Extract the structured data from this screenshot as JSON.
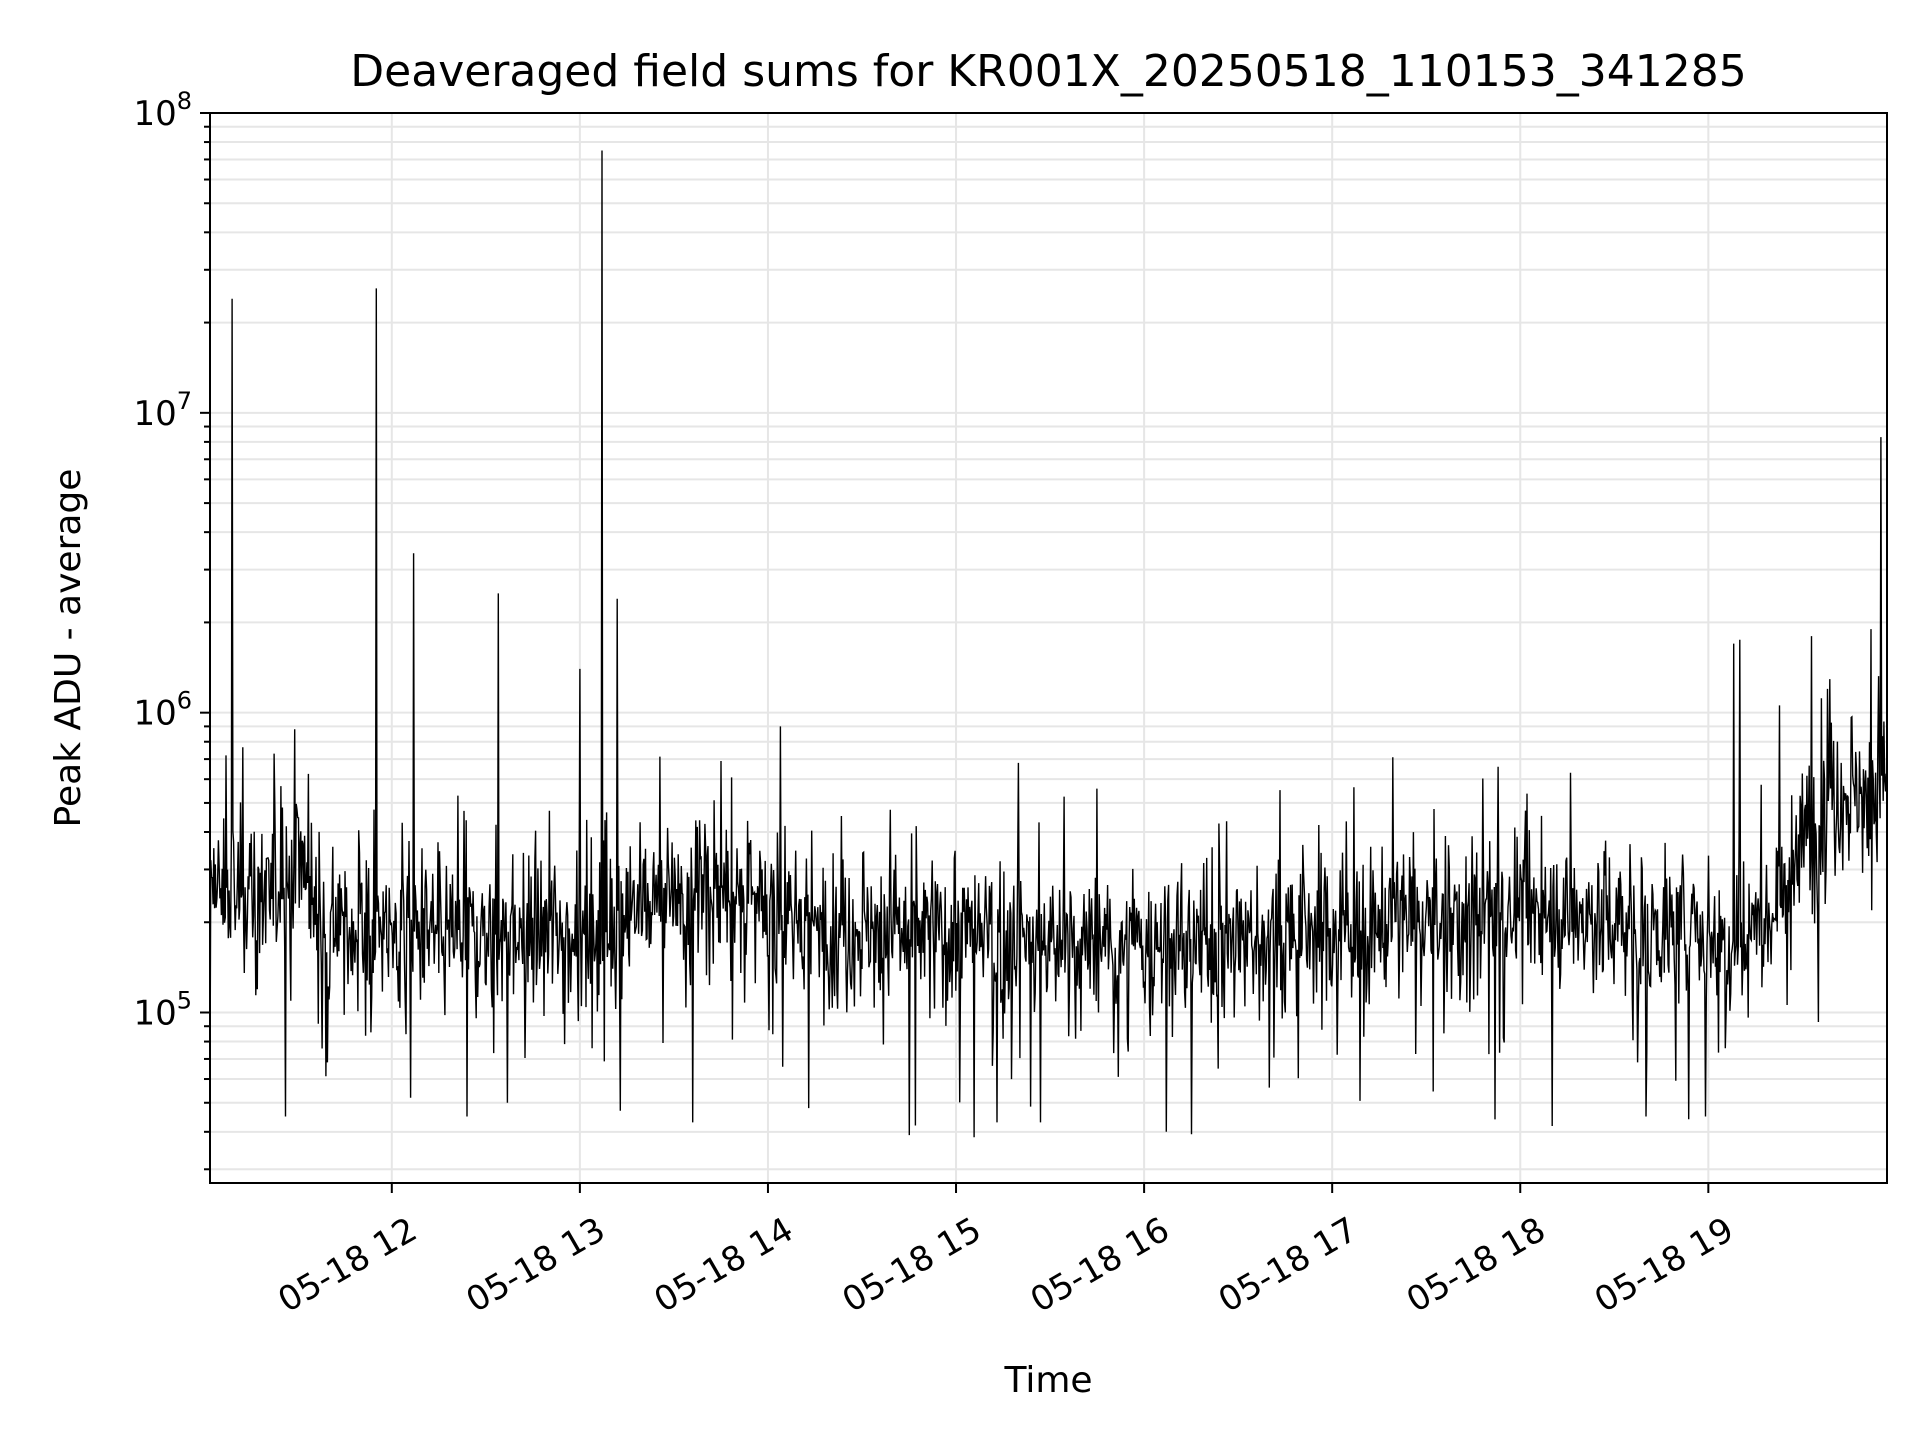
{
  "chart_data": {
    "type": "line",
    "title": "Deaveraged field sums for KR001X_20250518_110153_341285",
    "xlabel": "Time",
    "ylabel": "Peak ADU - average",
    "yscale": "log",
    "ylim": [
      27000,
      100000000
    ],
    "xlim": [
      "2025-05-18 11:02",
      "2025-05-18 19:57"
    ],
    "grid": true,
    "line_color": "#000000",
    "grid_color": "#e6e6e6",
    "x_ticks": [
      {
        "label": "05-18 12",
        "t": "2025-05-18 12:00"
      },
      {
        "label": "05-18 13",
        "t": "2025-05-18 13:00"
      },
      {
        "label": "05-18 14",
        "t": "2025-05-18 14:00"
      },
      {
        "label": "05-18 15",
        "t": "2025-05-18 15:00"
      },
      {
        "label": "05-18 16",
        "t": "2025-05-18 16:00"
      },
      {
        "label": "05-18 17",
        "t": "2025-05-18 17:00"
      },
      {
        "label": "05-18 18",
        "t": "2025-05-18 18:00"
      },
      {
        "label": "05-18 19",
        "t": "2025-05-18 19:00"
      }
    ],
    "y_ticks": [
      {
        "base": "10",
        "exp": "5",
        "value": 100000
      },
      {
        "base": "10",
        "exp": "6",
        "value": 1000000
      },
      {
        "base": "10",
        "exp": "7",
        "value": 10000000
      },
      {
        "base": "10",
        "exp": "8",
        "value": 100000000
      }
    ],
    "baseline": [
      {
        "t": "2025-05-18 11:02",
        "v": 250000
      },
      {
        "t": "2025-05-18 11:22",
        "v": 250000
      },
      {
        "t": "2025-05-18 11:30",
        "v": 350000
      },
      {
        "t": "2025-05-18 11:36",
        "v": 220000
      },
      {
        "t": "2025-05-18 11:50",
        "v": 180000
      },
      {
        "t": "2025-05-18 13:00",
        "v": 190000
      },
      {
        "t": "2025-05-18 13:40",
        "v": 260000
      },
      {
        "t": "2025-05-18 14:10",
        "v": 200000
      },
      {
        "t": "2025-05-18 15:00",
        "v": 180000
      },
      {
        "t": "2025-05-18 16:00",
        "v": 160000
      },
      {
        "t": "2025-05-18 17:00",
        "v": 190000
      },
      {
        "t": "2025-05-18 18:00",
        "v": 220000
      },
      {
        "t": "2025-05-18 19:10",
        "v": 180000
      },
      {
        "t": "2025-05-18 19:20",
        "v": 230000
      },
      {
        "t": "2025-05-18 19:30",
        "v": 350000
      },
      {
        "t": "2025-05-18 19:37",
        "v": 560000
      },
      {
        "t": "2025-05-18 19:57",
        "v": 520000
      }
    ],
    "spikes": [
      {
        "t": "2025-05-18 11:09",
        "v": 24000000
      },
      {
        "t": "2025-05-18 11:07",
        "v": 720000
      },
      {
        "t": "2025-05-18 11:29",
        "v": 880000
      },
      {
        "t": "2025-05-18 11:55",
        "v": 26000000
      },
      {
        "t": "2025-05-18 12:07",
        "v": 3400000
      },
      {
        "t": "2025-05-18 12:06",
        "v": 2500000
      },
      {
        "t": "2025-05-18 12:34",
        "v": 2500000
      },
      {
        "t": "2025-05-18 13:00",
        "v": 1400000
      },
      {
        "t": "2025-05-18 13:07",
        "v": 75000000
      },
      {
        "t": "2025-05-18 13:12",
        "v": 2400000
      },
      {
        "t": "2025-05-18 13:45",
        "v": 690000
      },
      {
        "t": "2025-05-18 14:04",
        "v": 900000
      },
      {
        "t": "2025-05-18 15:20",
        "v": 680000
      },
      {
        "t": "2025-05-18 17:53",
        "v": 660000
      },
      {
        "t": "2025-05-18 18:16",
        "v": 630000
      },
      {
        "t": "2025-05-18 18:40",
        "v": 640000
      },
      {
        "t": "2025-05-18 19:08",
        "v": 1700000
      },
      {
        "t": "2025-05-18 19:10",
        "v": 1750000
      },
      {
        "t": "2025-05-18 19:33",
        "v": 1800000
      },
      {
        "t": "2025-05-18 19:38",
        "v": 1200000
      },
      {
        "t": "2025-05-18 19:52",
        "v": 1900000
      },
      {
        "t": "2025-05-18 19:55",
        "v": 8300000
      }
    ],
    "dips": [
      {
        "t": "2025-05-18 11:02",
        "v": 60000
      },
      {
        "t": "2025-05-18 11:26",
        "v": 45000
      },
      {
        "t": "2025-05-18 12:06",
        "v": 52000
      },
      {
        "t": "2025-05-18 12:24",
        "v": 45000
      },
      {
        "t": "2025-05-18 12:37",
        "v": 50000
      },
      {
        "t": "2025-05-18 13:13",
        "v": 47000
      },
      {
        "t": "2025-05-18 13:36",
        "v": 43000
      },
      {
        "t": "2025-05-18 14:13",
        "v": 48000
      },
      {
        "t": "2025-05-18 14:45",
        "v": 39000
      },
      {
        "t": "2025-05-18 14:47",
        "v": 42000
      },
      {
        "t": "2025-05-18 15:13",
        "v": 43000
      },
      {
        "t": "2025-05-18 15:27",
        "v": 43000
      },
      {
        "t": "2025-05-18 16:07",
        "v": 40000
      },
      {
        "t": "2025-05-18 17:52",
        "v": 44000
      },
      {
        "t": "2025-05-18 18:40",
        "v": 45000
      },
      {
        "t": "2025-05-18 18:59",
        "v": 45000
      },
      {
        "t": "2025-05-18 19:35",
        "v": 93000
      }
    ]
  }
}
